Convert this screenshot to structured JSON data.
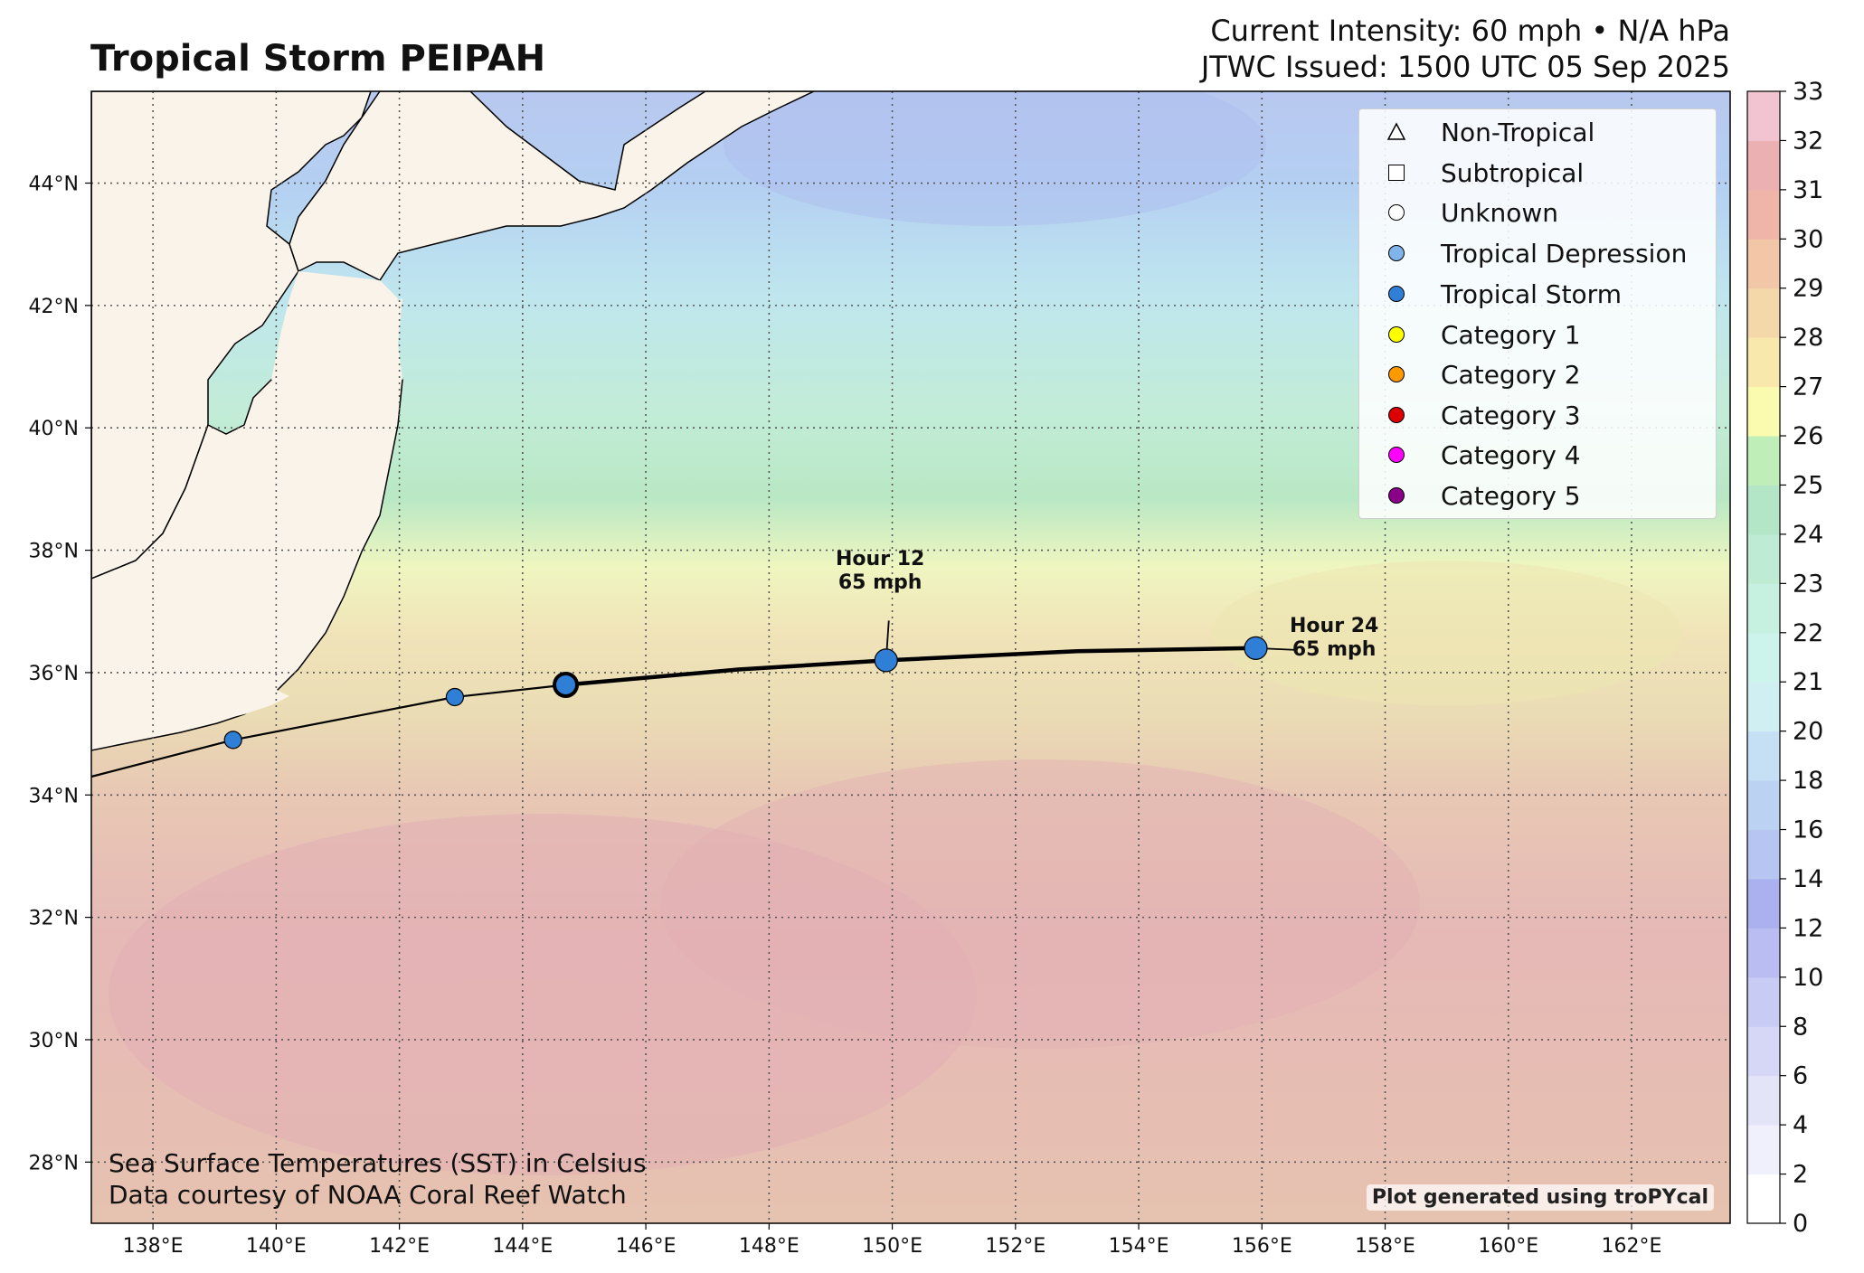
{
  "header": {
    "title": "Tropical Storm PEIPAH",
    "intensity": "Current Intensity: 60 mph • N/A hPa",
    "issued": "JTWC Issued: 1500 UTC 05 Sep 2025"
  },
  "map": {
    "lon_range": [
      137,
      163.6
    ],
    "lat_range": [
      27,
      45.5
    ],
    "lon_ticks": [
      {
        "v": 138,
        "label": "138°E"
      },
      {
        "v": 140,
        "label": "140°E"
      },
      {
        "v": 142,
        "label": "142°E"
      },
      {
        "v": 144,
        "label": "144°E"
      },
      {
        "v": 146,
        "label": "146°E"
      },
      {
        "v": 148,
        "label": "148°E"
      },
      {
        "v": 150,
        "label": "150°E"
      },
      {
        "v": 152,
        "label": "152°E"
      },
      {
        "v": 154,
        "label": "154°E"
      },
      {
        "v": 156,
        "label": "156°E"
      },
      {
        "v": 158,
        "label": "158°E"
      },
      {
        "v": 160,
        "label": "160°E"
      },
      {
        "v": 162,
        "label": "162°E"
      }
    ],
    "lat_ticks": [
      {
        "v": 28,
        "label": "28°N"
      },
      {
        "v": 30,
        "label": "30°N"
      },
      {
        "v": 32,
        "label": "32°N"
      },
      {
        "v": 34,
        "label": "34°N"
      },
      {
        "v": 36,
        "label": "36°N"
      },
      {
        "v": 38,
        "label": "38°N"
      },
      {
        "v": 40,
        "label": "40°N"
      },
      {
        "v": 42,
        "label": "42°N"
      },
      {
        "v": 44,
        "label": "44°N"
      }
    ],
    "past_track": [
      [
        137,
        34.3
      ],
      [
        139.3,
        34.9
      ],
      [
        142.9,
        35.6
      ],
      [
        144.7,
        35.8
      ]
    ],
    "past_points": [
      {
        "lon": 139.3,
        "lat": 34.9,
        "type": "Tropical Storm"
      },
      {
        "lon": 142.9,
        "lat": 35.6,
        "type": "Tropical Storm"
      }
    ],
    "current_position": {
      "lon": 144.7,
      "lat": 35.8,
      "type": "Tropical Storm"
    },
    "forecast_track": [
      [
        144.7,
        35.8
      ],
      [
        147.5,
        36.05
      ],
      [
        149.9,
        36.2
      ],
      [
        153,
        36.35
      ],
      [
        155.9,
        36.4
      ]
    ],
    "forecast_points": [
      {
        "lon": 149.9,
        "lat": 36.2,
        "hour_label": "Hour 12",
        "wind_label": "65 mph",
        "type": "Tropical Storm"
      },
      {
        "lon": 155.9,
        "lat": 36.4,
        "hour_label": "Hour 24",
        "wind_label": "65 mph",
        "type": "Tropical Storm"
      }
    ],
    "land_color": "#faf3ea",
    "track_color": "#000000"
  },
  "legend": [
    {
      "label": "Non-Tropical",
      "marker": "triangle",
      "color": "#ffffff"
    },
    {
      "label": "Subtropical",
      "marker": "square",
      "color": "#ffffff"
    },
    {
      "label": "Unknown",
      "marker": "circle",
      "color": "#ffffff"
    },
    {
      "label": "Tropical Depression",
      "marker": "circle",
      "color": "#7fb5ea"
    },
    {
      "label": "Tropical Storm",
      "marker": "circle",
      "color": "#2f7fd6"
    },
    {
      "label": "Category 1",
      "marker": "circle",
      "color": "#ffff00"
    },
    {
      "label": "Category 2",
      "marker": "circle",
      "color": "#ff9900"
    },
    {
      "label": "Category 3",
      "marker": "circle",
      "color": "#dd0000"
    },
    {
      "label": "Category 4",
      "marker": "circle",
      "color": "#ff00ff"
    },
    {
      "label": "Category 5",
      "marker": "circle",
      "color": "#8b0088"
    }
  ],
  "colorbar": {
    "labels": [
      "0",
      "2",
      "4",
      "6",
      "8",
      "10",
      "12",
      "14",
      "16",
      "18",
      "20",
      "21",
      "22",
      "23",
      "24",
      "25",
      "26",
      "27",
      "28",
      "29",
      "30",
      "31",
      "32",
      "33"
    ],
    "colors": [
      "#ffffff",
      "#f0f0fc",
      "#e4e4f8",
      "#d6d6f6",
      "#c8cbf4",
      "#b9bdf1",
      "#aab1ee",
      "#b7c6f1",
      "#bcd2f2",
      "#c5dff4",
      "#cfeff2",
      "#cdf4ec",
      "#c6f0e0",
      "#bdebd3",
      "#b3e6c6",
      "#bfeeb8",
      "#fbfbb0",
      "#f8e8ac",
      "#f5d8aa",
      "#f2c7a8",
      "#eeb5a8",
      "#ebb0b2",
      "#f2c3d0",
      "#f5d8ec"
    ]
  },
  "notes": {
    "line1": "Sea Surface Temperatures (SST) in Celsius",
    "line2": "Data courtesy of NOAA Coral Reef Watch",
    "credit": "Plot generated using troPYcal"
  }
}
